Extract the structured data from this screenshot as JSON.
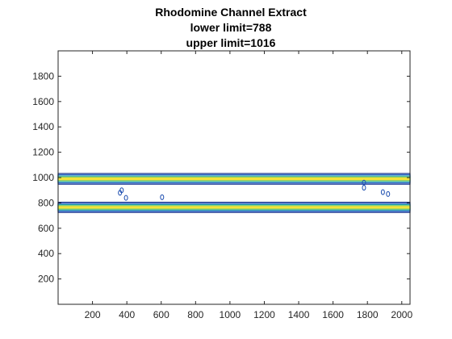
{
  "chart_data": {
    "type": "contour",
    "title_lines": [
      "Rhodomine Channel Extract",
      "lower limit=788",
      "upper limit=1016"
    ],
    "xlabel": "",
    "ylabel": "",
    "xlim": [
      0,
      2048
    ],
    "ylim": [
      0,
      2000
    ],
    "xticks": [
      200,
      400,
      600,
      800,
      1000,
      1200,
      1400,
      1600,
      1800,
      2000
    ],
    "yticks": [
      200,
      400,
      600,
      800,
      1000,
      1200,
      1400,
      1600,
      1800
    ],
    "grid": false,
    "bands": [
      {
        "name": "",
        "center": 990,
        "levels": [
          {
            "color": "#0d2a8c",
            "half_width": 42
          },
          {
            "color": "#1f5fc4",
            "half_width": 32
          },
          {
            "color": "#22a3a8",
            "half_width": 22
          },
          {
            "color": "#7ccd5a",
            "half_width": 14
          },
          {
            "color": "#f3e23a",
            "half_width": 7
          }
        ]
      },
      {
        "name": "",
        "center": 765,
        "levels": [
          {
            "color": "#0d2a8c",
            "half_width": 40
          },
          {
            "color": "#1f5fc4",
            "half_width": 30
          },
          {
            "color": "#22a3a8",
            "half_width": 21
          },
          {
            "color": "#7ccd5a",
            "half_width": 13
          },
          {
            "color": "#f3e23a",
            "half_width": 6
          }
        ]
      }
    ],
    "artifacts": [
      {
        "x": 360,
        "y": 880
      },
      {
        "x": 370,
        "y": 900
      },
      {
        "x": 395,
        "y": 840
      },
      {
        "x": 605,
        "y": 845
      },
      {
        "x": 1780,
        "y": 960
      },
      {
        "x": 1780,
        "y": 920
      },
      {
        "x": 1890,
        "y": 885
      },
      {
        "x": 1920,
        "y": 870
      }
    ]
  }
}
